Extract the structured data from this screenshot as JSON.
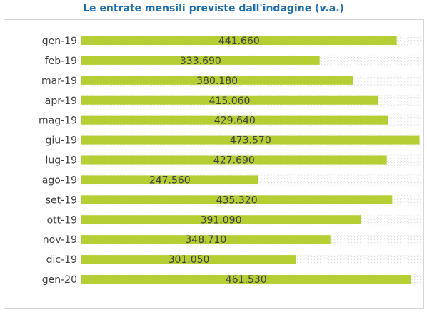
{
  "chart_data": {
    "type": "bar",
    "orientation": "horizontal",
    "title": "Le entrate mensili previste dall'indagine (v.a.)",
    "categories": [
      "gen-19",
      "feb-19",
      "mar-19",
      "apr-19",
      "mag-19",
      "giu-19",
      "lug-19",
      "ago-19",
      "set-19",
      "ott-19",
      "nov-19",
      "dic-19",
      "gen-20"
    ],
    "values": [
      441660,
      333690,
      380180,
      415060,
      429640,
      473570,
      427690,
      247560,
      435320,
      391090,
      348710,
      301050,
      461530
    ],
    "value_labels": [
      "441.660",
      "333.690",
      "380.180",
      "415.060",
      "429.640",
      "473.570",
      "427.690",
      "247.560",
      "435.320",
      "391.090",
      "348.710",
      "301.050",
      "461.530"
    ],
    "xlim": [
      0,
      476000
    ],
    "bar_color": "#B5CE34",
    "background_pattern": "dotted",
    "grid": false,
    "legend": "none"
  }
}
